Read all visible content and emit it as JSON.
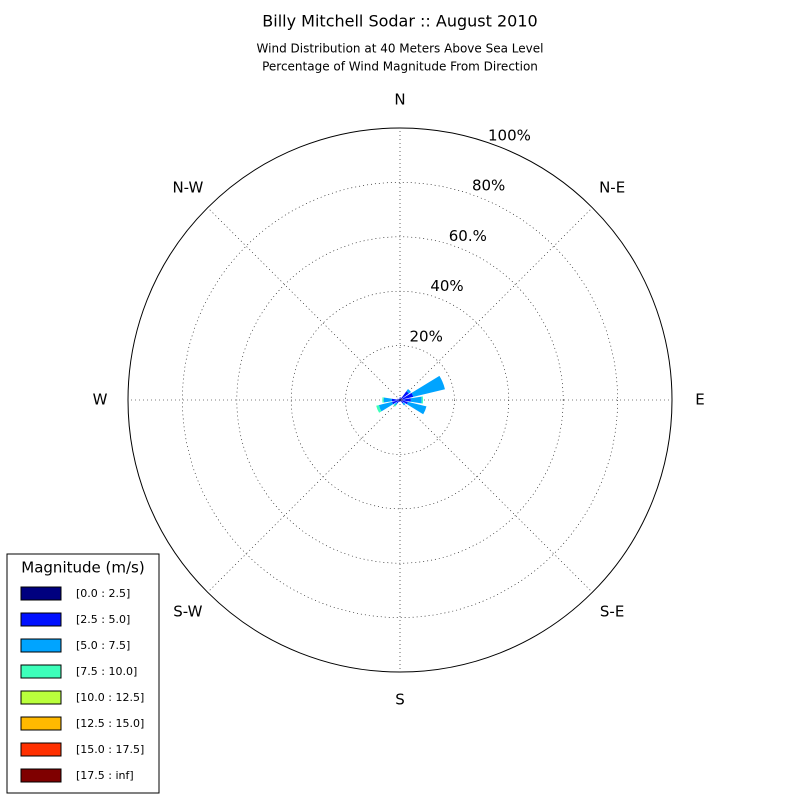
{
  "chart_data": {
    "type": "windrose",
    "title": "Billy Mitchell Sodar :: August 2010",
    "subtitle": [
      "Wind Distribution at 40 Meters Above Sea Level",
      "Percentage of Wind Magnitude From Direction"
    ],
    "direction_labels": [
      "N",
      "N-E",
      "E",
      "S-E",
      "S",
      "S-W",
      "W",
      "N-W"
    ],
    "x": [
      0,
      22.5,
      45,
      67.5,
      90,
      112.5,
      135,
      157.5,
      180,
      202.5,
      225,
      247.5,
      270,
      292.5,
      315,
      337.5
    ],
    "ylim": [
      0,
      100
    ],
    "yticks": [
      {
        "value": 20,
        "label": "20%"
      },
      {
        "value": 40,
        "label": "40%"
      },
      {
        "value": 60,
        "label": "60.%"
      },
      {
        "value": 80,
        "label": "80%"
      },
      {
        "value": 100,
        "label": "100%"
      }
    ],
    "grid": true,
    "legend": {
      "title": "Magnitude (m/s)",
      "position": "lower-left"
    },
    "series": [
      {
        "name": "[0.0 : 2.5]",
        "color": "#00007f",
        "values": [
          0.5,
          0.5,
          1,
          1,
          1,
          1,
          0.5,
          0.3,
          0.3,
          0.3,
          0.5,
          1,
          1,
          0.5,
          0.3,
          0.3
        ]
      },
      {
        "name": "[2.5 : 5.0]",
        "color": "#0010ff",
        "values": [
          0.5,
          0.5,
          3,
          4,
          3,
          2,
          1,
          0.3,
          0.3,
          0.5,
          1,
          2,
          2,
          0.5,
          0.3,
          0.3
        ]
      },
      {
        "name": "[5.0 : 7.5]",
        "color": "#00a4ff",
        "values": [
          0,
          0,
          1,
          12,
          4,
          7,
          1,
          0,
          0,
          0,
          1,
          5,
          3,
          0,
          0,
          0
        ]
      },
      {
        "name": "[7.5 : 10.0]",
        "color": "#3dffba",
        "values": [
          0,
          0,
          0,
          0,
          0.5,
          0,
          0,
          0,
          0,
          0,
          0.5,
          1,
          0.5,
          0,
          0,
          0
        ]
      },
      {
        "name": "[10.0 : 12.5]",
        "color": "#baff3c",
        "values": [
          0,
          0,
          0,
          0,
          0,
          0,
          0,
          0,
          0,
          0,
          0,
          0,
          0,
          0,
          0,
          0
        ]
      },
      {
        "name": "[12.5 : 15.0]",
        "color": "#ffb900",
        "values": [
          0,
          0,
          0,
          0,
          0,
          0,
          0,
          0,
          0,
          0,
          0,
          0,
          0,
          0,
          0,
          0
        ]
      },
      {
        "name": "[15.0 : 17.5]",
        "color": "#ff3000",
        "values": [
          0,
          0,
          0,
          0,
          0,
          0,
          0,
          0,
          0,
          0,
          0,
          0,
          0,
          0,
          0,
          0
        ]
      },
      {
        "name": "[17.5 : inf]",
        "color": "#7f0000",
        "values": [
          0,
          0,
          0,
          0,
          0,
          0,
          0,
          0,
          0,
          0,
          0,
          0,
          0,
          0,
          0,
          0
        ]
      }
    ]
  }
}
